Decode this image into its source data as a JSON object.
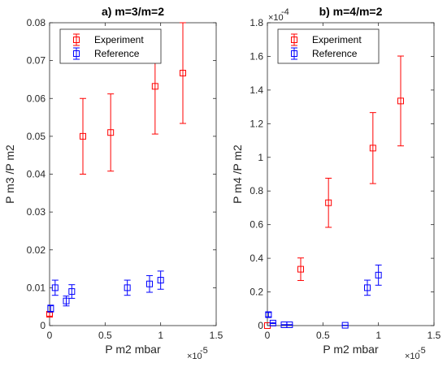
{
  "chart_data": [
    {
      "type": "scatter",
      "title": "a) m=3/m=2",
      "xlabel": "P m2 mbar",
      "ylabel": "P m3 /P m2",
      "x_multiplier_label": "×10",
      "x_multiplier_exp": "-5",
      "y_multiplier_label": "",
      "y_multiplier_exp": "",
      "xlim": [
        0,
        1.5
      ],
      "ylim": [
        0,
        0.08
      ],
      "x_ticks": [
        0,
        0.5,
        1,
        1.5
      ],
      "x_tick_labels": [
        "0",
        "0.5",
        "1",
        "1.5"
      ],
      "y_ticks": [
        0,
        0.01,
        0.02,
        0.03,
        0.04,
        0.05,
        0.06,
        0.07,
        0.08
      ],
      "y_tick_labels": [
        "0",
        "0.01",
        "0.02",
        "0.03",
        "0.04",
        "0.05",
        "0.06",
        "0.07",
        "0.08"
      ],
      "legend_position": "top-left",
      "grid": false,
      "series": [
        {
          "name": "Experiment",
          "color": "#ff0000",
          "marker": "square",
          "points": [
            {
              "x": 0.0,
              "y": 0.003,
              "err": 0.0005
            },
            {
              "x": 0.3,
              "y": 0.05,
              "err": 0.01
            },
            {
              "x": 0.55,
              "y": 0.051,
              "err": 0.0102
            },
            {
              "x": 0.95,
              "y": 0.0632,
              "err": 0.0126
            },
            {
              "x": 1.2,
              "y": 0.0667,
              "err": 0.0133
            }
          ]
        },
        {
          "name": "Reference",
          "color": "#0000ff",
          "marker": "square",
          "points": [
            {
              "x": 0.01,
              "y": 0.0045,
              "err": 0.0009
            },
            {
              "x": 0.05,
              "y": 0.01,
              "err": 0.002
            },
            {
              "x": 0.15,
              "y": 0.0065,
              "err": 0.0013
            },
            {
              "x": 0.2,
              "y": 0.009,
              "err": 0.0018
            },
            {
              "x": 0.7,
              "y": 0.01,
              "err": 0.002
            },
            {
              "x": 0.9,
              "y": 0.011,
              "err": 0.0022
            },
            {
              "x": 1.0,
              "y": 0.012,
              "err": 0.0024
            }
          ]
        }
      ]
    },
    {
      "type": "scatter",
      "title": "b) m=4/m=2",
      "xlabel": "P m2 mbar",
      "ylabel": "P m4 /P m2",
      "x_multiplier_label": "×10",
      "x_multiplier_exp": "-5",
      "y_multiplier_label": "×10",
      "y_multiplier_exp": "-4",
      "xlim": [
        0,
        1.5
      ],
      "ylim": [
        0,
        1.8
      ],
      "x_ticks": [
        0,
        0.5,
        1,
        1.5
      ],
      "x_tick_labels": [
        "0",
        "0.5",
        "1",
        "1.5"
      ],
      "y_ticks": [
        0,
        0.2,
        0.4,
        0.6,
        0.8,
        1.0,
        1.2,
        1.4,
        1.6,
        1.8
      ],
      "y_tick_labels": [
        "0",
        "0.2",
        "0.4",
        "0.6",
        "0.8",
        "1",
        "1.2",
        "1.4",
        "1.6",
        "1.8"
      ],
      "legend_position": "top-left",
      "grid": false,
      "series": [
        {
          "name": "Experiment",
          "color": "#ff0000",
          "marker": "square",
          "points": [
            {
              "x": 0.0,
              "y": 0.0,
              "err": 0.0
            },
            {
              "x": 0.3,
              "y": 0.335,
              "err": 0.067
            },
            {
              "x": 0.55,
              "y": 0.73,
              "err": 0.146
            },
            {
              "x": 0.95,
              "y": 1.055,
              "err": 0.211
            },
            {
              "x": 1.2,
              "y": 1.335,
              "err": 0.267
            }
          ]
        },
        {
          "name": "Reference",
          "color": "#0000ff",
          "marker": "square",
          "points": [
            {
              "x": 0.01,
              "y": 0.065,
              "err": 0.013
            },
            {
              "x": 0.05,
              "y": 0.015,
              "err": 0.003
            },
            {
              "x": 0.15,
              "y": 0.005,
              "err": 0.001
            },
            {
              "x": 0.2,
              "y": 0.005,
              "err": 0.001
            },
            {
              "x": 0.7,
              "y": 0.002,
              "err": 0.0004
            },
            {
              "x": 0.9,
              "y": 0.225,
              "err": 0.045
            },
            {
              "x": 1.0,
              "y": 0.3,
              "err": 0.06
            }
          ]
        }
      ]
    }
  ]
}
